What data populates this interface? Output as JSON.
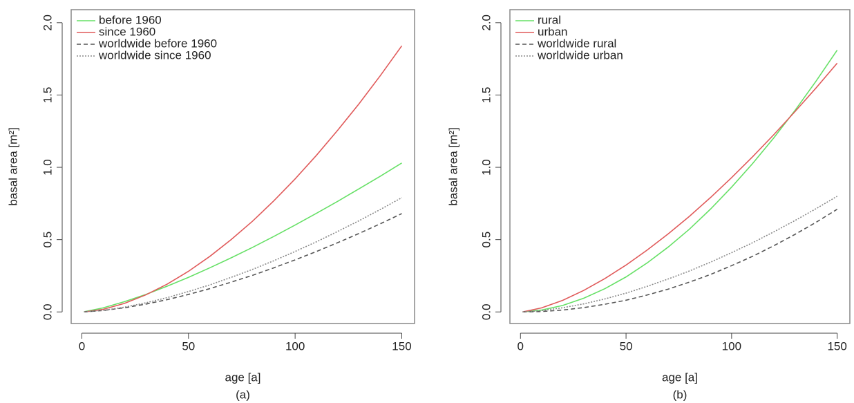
{
  "chart_data": [
    {
      "type": "line",
      "caption": "(a)",
      "x_label": "age [a]",
      "y_label": "basal area [m²]",
      "x": [
        1,
        10,
        20,
        30,
        40,
        50,
        60,
        70,
        80,
        90,
        100,
        110,
        120,
        130,
        140,
        150
      ],
      "xlim": [
        -5,
        156
      ],
      "xticks": [
        0,
        50,
        100,
        150
      ],
      "ylim": [
        -0.08,
        2.09
      ],
      "yticks": [
        0.0,
        0.5,
        1.0,
        1.5,
        2.0
      ],
      "legend": "top-left",
      "series": [
        {
          "name": "before 1960",
          "color": "#66e066",
          "dash": "solid",
          "values": [
            0.001,
            0.028,
            0.071,
            0.121,
            0.178,
            0.239,
            0.305,
            0.374,
            0.446,
            0.522,
            0.601,
            0.682,
            0.765,
            0.852,
            0.939,
            1.03
          ]
        },
        {
          "name": "since 1960",
          "color": "#e05a5a",
          "dash": "solid",
          "values": [
            0.0,
            0.018,
            0.059,
            0.118,
            0.192,
            0.281,
            0.384,
            0.5,
            0.627,
            0.768,
            0.92,
            1.083,
            1.257,
            1.44,
            1.635,
            1.84
          ]
        },
        {
          "name": "worldwide before 1960",
          "color": "#555555",
          "dash": "dashed",
          "values": [
            0.0,
            0.01,
            0.029,
            0.054,
            0.085,
            0.121,
            0.161,
            0.206,
            0.253,
            0.305,
            0.36,
            0.418,
            0.479,
            0.543,
            0.61,
            0.68
          ]
        },
        {
          "name": "worldwide since 1960",
          "color": "#888888",
          "dash": "dotted",
          "values": [
            0.0,
            0.011,
            0.033,
            0.063,
            0.099,
            0.141,
            0.187,
            0.239,
            0.294,
            0.354,
            0.418,
            0.485,
            0.557,
            0.631,
            0.709,
            0.79
          ]
        }
      ]
    },
    {
      "type": "line",
      "caption": "(b)",
      "x_label": "age [a]",
      "y_label": "basal area [m²]",
      "x": [
        1,
        10,
        20,
        30,
        40,
        50,
        60,
        70,
        80,
        90,
        100,
        110,
        120,
        130,
        140,
        150
      ],
      "xlim": [
        -5,
        156
      ],
      "xticks": [
        0,
        50,
        100,
        150
      ],
      "ylim": [
        -0.08,
        2.09
      ],
      "yticks": [
        0.0,
        0.5,
        1.0,
        1.5,
        2.0
      ],
      "legend": "top-left",
      "series": [
        {
          "name": "rural",
          "color": "#66e066",
          "dash": "solid",
          "values": [
            0.0,
            0.013,
            0.045,
            0.095,
            0.161,
            0.242,
            0.339,
            0.449,
            0.572,
            0.711,
            0.863,
            1.027,
            1.204,
            1.393,
            1.596,
            1.81
          ]
        },
        {
          "name": "urban",
          "color": "#e05a5a",
          "dash": "solid",
          "values": [
            0.0,
            0.028,
            0.08,
            0.149,
            0.231,
            0.324,
            0.428,
            0.54,
            0.661,
            0.791,
            0.929,
            1.074,
            1.226,
            1.385,
            1.549,
            1.72
          ]
        },
        {
          "name": "worldwide rural",
          "color": "#555555",
          "dash": "dashed",
          "values": [
            0.0,
            0.003,
            0.013,
            0.03,
            0.053,
            0.081,
            0.117,
            0.158,
            0.206,
            0.259,
            0.32,
            0.385,
            0.458,
            0.536,
            0.62,
            0.71
          ]
        },
        {
          "name": "worldwide urban",
          "color": "#888888",
          "dash": "dotted",
          "values": [
            0.0,
            0.009,
            0.029,
            0.056,
            0.09,
            0.13,
            0.177,
            0.228,
            0.283,
            0.344,
            0.41,
            0.479,
            0.554,
            0.632,
            0.714,
            0.8
          ]
        }
      ]
    }
  ]
}
